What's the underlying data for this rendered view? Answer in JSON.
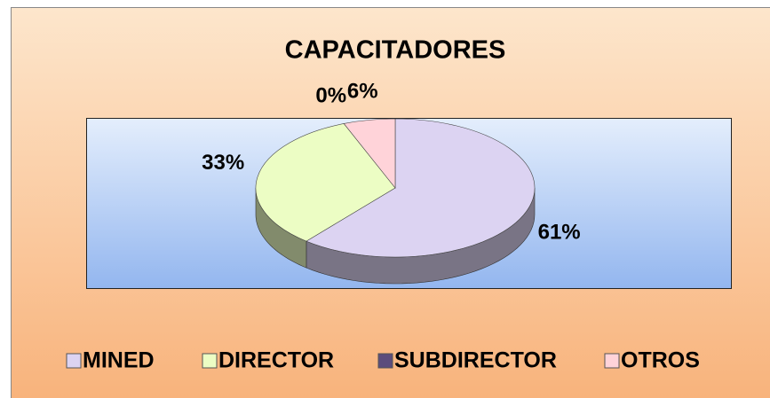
{
  "chart_data": {
    "type": "pie",
    "title": "CAPACITADORES",
    "categories": [
      "MINED",
      "DIRECTOR",
      "SUBDIRECTOR",
      "OTROS"
    ],
    "values": [
      61,
      33,
      0,
      6
    ],
    "value_labels": [
      "61%",
      "33%",
      "0%",
      "6%"
    ],
    "colors": [
      "#dcd3f2",
      "#ecfdc4",
      "#5c4d7c",
      "#ffd3d9"
    ],
    "legend": "bottom"
  }
}
